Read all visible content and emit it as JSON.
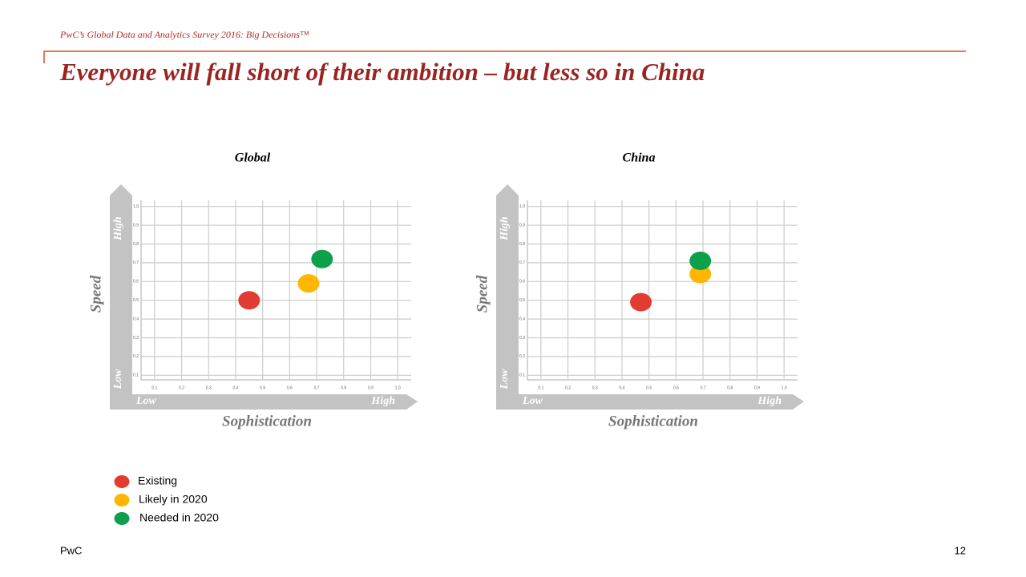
{
  "header": "PwC’s Global Data and Analytics Survey 2016: Big Decisions™",
  "title": "Everyone will fall short of their ambition – but less so in China",
  "chart_data": [
    {
      "type": "scatter",
      "title": "Global",
      "x_label": "Sophistication",
      "y_label": "Speed",
      "x_axis_ends": [
        "Low",
        "High"
      ],
      "y_axis_ends": [
        "Low",
        "High"
      ],
      "xlim": [
        0.05,
        1.05
      ],
      "ylim": [
        0.05,
        1.05
      ],
      "xticks": [
        0.1,
        0.2,
        0.3,
        0.4,
        0.5,
        0.6,
        0.7,
        0.8,
        0.9,
        {
          "value": 1,
          "label": "1.0"
        }
      ],
      "yticks": [
        0.1,
        0.2,
        0.3,
        0.4,
        0.5,
        0.6,
        0.7,
        0.8,
        0.9,
        {
          "value": 1,
          "label": "1.0"
        }
      ],
      "grid": true,
      "series": [
        {
          "name": "Existing",
          "color": "#e03c31",
          "x": [
            0.45
          ],
          "values": [
            0.5
          ]
        },
        {
          "name": "Likely in 2020",
          "color": "#ffb600",
          "x": [
            0.67
          ],
          "values": [
            0.59
          ]
        },
        {
          "name": "Needed in 2020",
          "color": "#0ca04a",
          "x": [
            0.72
          ],
          "values": [
            0.72
          ]
        }
      ]
    },
    {
      "type": "scatter",
      "title": "China",
      "x_label": "Sophistication",
      "y_label": "Speed",
      "x_axis_ends": [
        "Low",
        "High"
      ],
      "y_axis_ends": [
        "Low",
        "High"
      ],
      "xlim": [
        0.05,
        1.05
      ],
      "ylim": [
        0.05,
        1.05
      ],
      "xticks": [
        0.1,
        0.2,
        0.3,
        0.4,
        0.5,
        0.6,
        0.7,
        0.8,
        0.9,
        {
          "value": 1,
          "label": "1.0"
        }
      ],
      "yticks": [
        0.1,
        0.2,
        0.3,
        0.4,
        0.5,
        0.6,
        0.7,
        0.8,
        0.9,
        {
          "value": 1,
          "label": "1.0"
        }
      ],
      "grid": true,
      "series": [
        {
          "color": "#e03c31",
          "x": [
            0.47
          ],
          "values": [
            0.49
          ]
        },
        {
          "color": "#ffb600",
          "x": [
            0.69
          ],
          "values": [
            0.64
          ]
        },
        {
          "color": "#0ca04a",
          "x": [
            0.69
          ],
          "values": [
            0.71
          ]
        }
      ]
    }
  ],
  "footer": "PwC",
  "page_number": "12"
}
